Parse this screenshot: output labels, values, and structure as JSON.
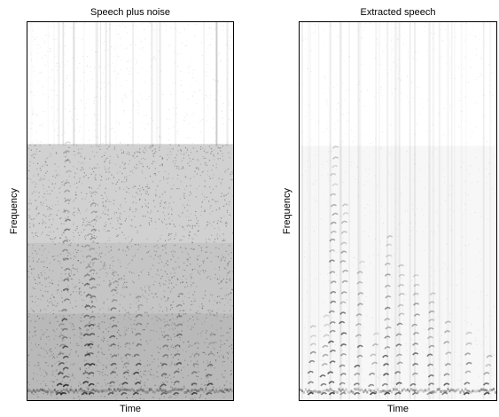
{
  "chart_data": [
    {
      "type": "heatmap",
      "title": "Speech plus noise",
      "xlabel": "Time",
      "ylabel": "Frequency",
      "colormap": "grayscale-inverted",
      "grid": false,
      "legend": "none"
    },
    {
      "type": "heatmap",
      "title": "Extracted speech",
      "xlabel": "Time",
      "ylabel": "Frequency",
      "colormap": "grayscale-inverted",
      "grid": false,
      "legend": "none"
    }
  ]
}
